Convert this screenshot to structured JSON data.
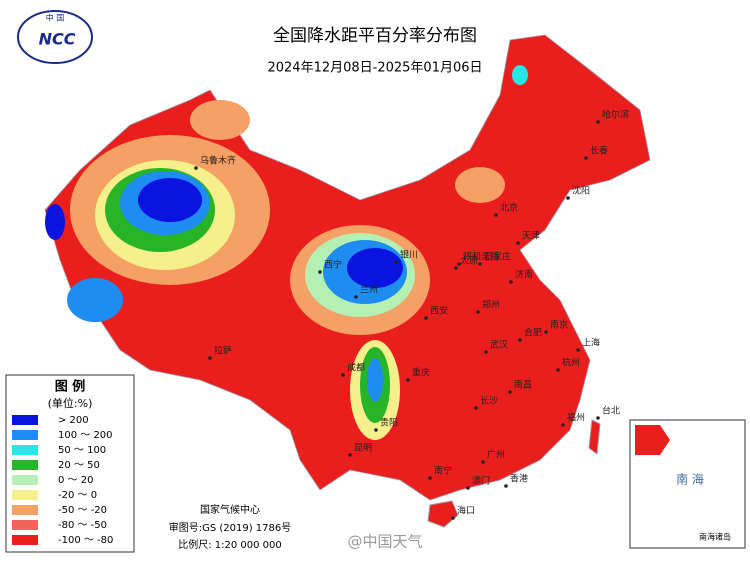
{
  "header": {
    "logo_top": "中 国",
    "logo": "NCC",
    "title": "全国降水距平百分率分布图",
    "subtitle": "2024年12月08日-2025年01月06日"
  },
  "legend": {
    "title": "图 例",
    "unit": "(单位:%)",
    "items": [
      {
        "label": "> 200",
        "color": "#0a14e0"
      },
      {
        "label": "100 ～ 200",
        "color": "#1e8cf0"
      },
      {
        "label": "50 ～ 100",
        "color": "#28e6e6"
      },
      {
        "label": "20 ～ 50",
        "color": "#28b428"
      },
      {
        "label": "0 ～ 20",
        "color": "#b4f0b4"
      },
      {
        "label": "-20 ～ 0",
        "color": "#f5f08c"
      },
      {
        "label": "-50 ～ -20",
        "color": "#f5a064"
      },
      {
        "label": "-80 ～ -50",
        "color": "#f0645a"
      },
      {
        "label": "-100 ～ -80",
        "color": "#eb1e1e"
      }
    ]
  },
  "footer": {
    "agency": "国家气候中心",
    "approval": "审图号:GS (2019) 1786号",
    "scale": "比例尺: 1:20 000 000"
  },
  "inset": {
    "sea": "南 海",
    "islands": "南海诸岛"
  },
  "watermark": "@中国天气",
  "cities": [
    "乌鲁木齐",
    "拉萨",
    "西宁",
    "兰州",
    "银川",
    "呼和浩特",
    "北京",
    "天津",
    "石家庄",
    "太原",
    "济南",
    "郑州",
    "西安",
    "武汉",
    "南京",
    "合肥",
    "上海",
    "杭州",
    "长沙",
    "南昌",
    "福州",
    "台北",
    "广州",
    "南宁",
    "海口",
    "昆明",
    "贵阳",
    "重庆",
    "成都",
    "沈阳",
    "长春",
    "哈尔滨",
    "香港",
    "澳门"
  ]
}
